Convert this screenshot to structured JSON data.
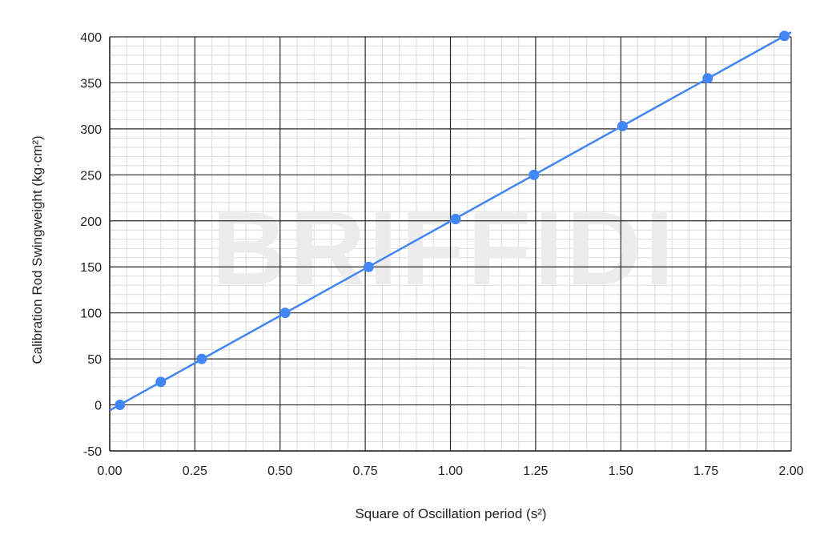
{
  "chart_data": {
    "type": "line",
    "title": "",
    "xlabel": "Square of Oscillation period (s²)",
    "ylabel": "Calibration Rod Swingweight (kg·cm²)",
    "xlim": [
      0,
      2
    ],
    "ylim": [
      -50,
      400
    ],
    "x_ticks": [
      "0.00",
      "0.25",
      "0.50",
      "0.75",
      "1.00",
      "1.25",
      "1.50",
      "1.75",
      "2.00"
    ],
    "y_ticks": [
      "-50",
      "0",
      "50",
      "100",
      "150",
      "200",
      "250",
      "300",
      "350",
      "400"
    ],
    "grid": true,
    "legend": "none",
    "watermark": "BRIFFIDI",
    "series": [
      {
        "color": "#4285f4",
        "points": [
          {
            "x": 0.03,
            "y": 0
          },
          {
            "x": 0.15,
            "y": 25
          },
          {
            "x": 0.27,
            "y": 50
          },
          {
            "x": 0.515,
            "y": 100
          },
          {
            "x": 0.76,
            "y": 150
          },
          {
            "x": 1.015,
            "y": 202
          },
          {
            "x": 1.245,
            "y": 250
          },
          {
            "x": 1.505,
            "y": 303
          },
          {
            "x": 1.755,
            "y": 355
          },
          {
            "x": 1.98,
            "y": 401
          }
        ]
      }
    ],
    "line_extends_to": {
      "x_start": 0,
      "x_end": 2
    }
  }
}
